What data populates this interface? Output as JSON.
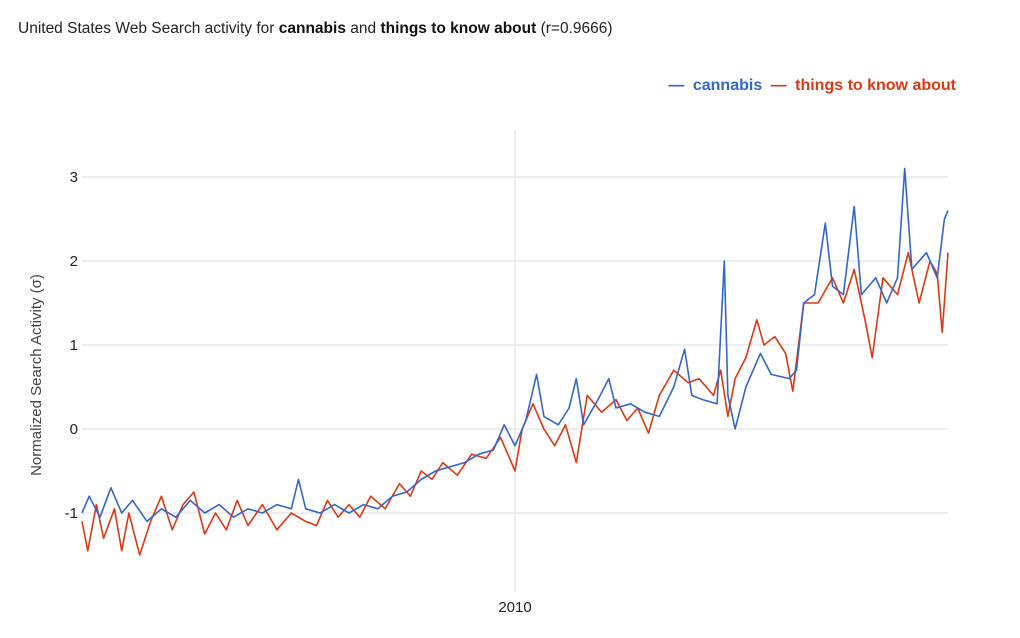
{
  "chart_data": {
    "type": "line",
    "title": {
      "prefix": "United States Web Search activity for ",
      "term1": "cannabis",
      "mid": " and ",
      "term2": "things to know about",
      "suffix": " (r=0.9666)"
    },
    "xlabel": "",
    "ylabel": "Normalized Search Activity (σ)",
    "xlim": [
      2004,
      2016
    ],
    "ylim": [
      -1.8,
      3.4
    ],
    "yticks": [
      -1,
      0,
      1,
      2,
      3
    ],
    "xticks": [
      2010
    ],
    "xtick_labels": [
      "2010"
    ],
    "grid": true,
    "legend_position": "top-right",
    "series": [
      {
        "name": "cannabis",
        "color": "#3366cc",
        "points": [
          [
            2004.0,
            -1.0
          ],
          [
            2004.1,
            -0.8
          ],
          [
            2004.25,
            -1.05
          ],
          [
            2004.4,
            -0.7
          ],
          [
            2004.55,
            -1.0
          ],
          [
            2004.7,
            -0.85
          ],
          [
            2004.9,
            -1.1
          ],
          [
            2005.1,
            -0.95
          ],
          [
            2005.3,
            -1.05
          ],
          [
            2005.5,
            -0.85
          ],
          [
            2005.7,
            -1.0
          ],
          [
            2005.9,
            -0.9
          ],
          [
            2006.1,
            -1.05
          ],
          [
            2006.3,
            -0.95
          ],
          [
            2006.5,
            -1.0
          ],
          [
            2006.7,
            -0.9
          ],
          [
            2006.9,
            -0.95
          ],
          [
            2007.0,
            -0.6
          ],
          [
            2007.1,
            -0.95
          ],
          [
            2007.3,
            -1.0
          ],
          [
            2007.5,
            -0.9
          ],
          [
            2007.7,
            -1.0
          ],
          [
            2007.9,
            -0.9
          ],
          [
            2008.1,
            -0.95
          ],
          [
            2008.3,
            -0.8
          ],
          [
            2008.5,
            -0.75
          ],
          [
            2008.7,
            -0.6
          ],
          [
            2008.9,
            -0.5
          ],
          [
            2009.1,
            -0.45
          ],
          [
            2009.3,
            -0.4
          ],
          [
            2009.5,
            -0.3
          ],
          [
            2009.7,
            -0.25
          ],
          [
            2009.85,
            0.05
          ],
          [
            2010.0,
            -0.2
          ],
          [
            2010.15,
            0.1
          ],
          [
            2010.3,
            0.65
          ],
          [
            2010.4,
            0.15
          ],
          [
            2010.6,
            0.05
          ],
          [
            2010.75,
            0.25
          ],
          [
            2010.85,
            0.6
          ],
          [
            2010.95,
            0.05
          ],
          [
            2011.15,
            0.35
          ],
          [
            2011.3,
            0.6
          ],
          [
            2011.4,
            0.25
          ],
          [
            2011.6,
            0.3
          ],
          [
            2011.8,
            0.2
          ],
          [
            2012.0,
            0.15
          ],
          [
            2012.2,
            0.5
          ],
          [
            2012.35,
            0.95
          ],
          [
            2012.45,
            0.4
          ],
          [
            2012.6,
            0.35
          ],
          [
            2012.8,
            0.3
          ],
          [
            2012.9,
            2.0
          ],
          [
            2012.95,
            0.4
          ],
          [
            2013.05,
            0.0
          ],
          [
            2013.2,
            0.5
          ],
          [
            2013.4,
            0.9
          ],
          [
            2013.55,
            0.65
          ],
          [
            2013.8,
            0.6
          ],
          [
            2013.9,
            0.7
          ],
          [
            2014.0,
            1.5
          ],
          [
            2014.15,
            1.6
          ],
          [
            2014.3,
            2.45
          ],
          [
            2014.4,
            1.7
          ],
          [
            2014.55,
            1.6
          ],
          [
            2014.7,
            2.65
          ],
          [
            2014.8,
            1.6
          ],
          [
            2015.0,
            1.8
          ],
          [
            2015.15,
            1.5
          ],
          [
            2015.3,
            1.8
          ],
          [
            2015.4,
            3.1
          ],
          [
            2015.5,
            1.9
          ],
          [
            2015.7,
            2.1
          ],
          [
            2015.85,
            1.8
          ],
          [
            2015.95,
            2.5
          ],
          [
            2016.0,
            2.6
          ]
        ]
      },
      {
        "name": "things to know about",
        "color": "#dc3912",
        "points": [
          [
            2004.0,
            -1.1
          ],
          [
            2004.08,
            -1.45
          ],
          [
            2004.2,
            -0.9
          ],
          [
            2004.3,
            -1.3
          ],
          [
            2004.45,
            -0.95
          ],
          [
            2004.55,
            -1.45
          ],
          [
            2004.65,
            -1.0
          ],
          [
            2004.8,
            -1.5
          ],
          [
            2004.95,
            -1.1
          ],
          [
            2005.1,
            -0.8
          ],
          [
            2005.25,
            -1.2
          ],
          [
            2005.4,
            -0.9
          ],
          [
            2005.55,
            -0.75
          ],
          [
            2005.7,
            -1.25
          ],
          [
            2005.85,
            -1.0
          ],
          [
            2006.0,
            -1.2
          ],
          [
            2006.15,
            -0.85
          ],
          [
            2006.3,
            -1.15
          ],
          [
            2006.5,
            -0.9
          ],
          [
            2006.7,
            -1.2
          ],
          [
            2006.9,
            -1.0
          ],
          [
            2007.1,
            -1.1
          ],
          [
            2007.25,
            -1.15
          ],
          [
            2007.4,
            -0.85
          ],
          [
            2007.55,
            -1.05
          ],
          [
            2007.7,
            -0.9
          ],
          [
            2007.85,
            -1.05
          ],
          [
            2008.0,
            -0.8
          ],
          [
            2008.2,
            -0.95
          ],
          [
            2008.4,
            -0.65
          ],
          [
            2008.55,
            -0.8
          ],
          [
            2008.7,
            -0.5
          ],
          [
            2008.85,
            -0.6
          ],
          [
            2009.0,
            -0.4
          ],
          [
            2009.2,
            -0.55
          ],
          [
            2009.4,
            -0.3
          ],
          [
            2009.6,
            -0.35
          ],
          [
            2009.8,
            -0.1
          ],
          [
            2010.0,
            -0.5
          ],
          [
            2010.1,
            0.0
          ],
          [
            2010.25,
            0.3
          ],
          [
            2010.4,
            0.0
          ],
          [
            2010.55,
            -0.2
          ],
          [
            2010.7,
            0.05
          ],
          [
            2010.85,
            -0.4
          ],
          [
            2011.0,
            0.4
          ],
          [
            2011.2,
            0.2
          ],
          [
            2011.4,
            0.35
          ],
          [
            2011.55,
            0.1
          ],
          [
            2011.7,
            0.25
          ],
          [
            2011.85,
            -0.05
          ],
          [
            2012.0,
            0.4
          ],
          [
            2012.2,
            0.7
          ],
          [
            2012.4,
            0.55
          ],
          [
            2012.55,
            0.6
          ],
          [
            2012.75,
            0.4
          ],
          [
            2012.85,
            0.7
          ],
          [
            2012.95,
            0.15
          ],
          [
            2013.05,
            0.6
          ],
          [
            2013.2,
            0.85
          ],
          [
            2013.35,
            1.3
          ],
          [
            2013.45,
            1.0
          ],
          [
            2013.6,
            1.1
          ],
          [
            2013.75,
            0.9
          ],
          [
            2013.85,
            0.45
          ],
          [
            2014.0,
            1.5
          ],
          [
            2014.2,
            1.5
          ],
          [
            2014.4,
            1.8
          ],
          [
            2014.55,
            1.5
          ],
          [
            2014.7,
            1.9
          ],
          [
            2014.85,
            1.3
          ],
          [
            2014.95,
            0.85
          ],
          [
            2015.1,
            1.8
          ],
          [
            2015.3,
            1.6
          ],
          [
            2015.45,
            2.1
          ],
          [
            2015.6,
            1.5
          ],
          [
            2015.75,
            2.0
          ],
          [
            2015.85,
            1.85
          ],
          [
            2015.92,
            1.15
          ],
          [
            2016.0,
            2.1
          ]
        ]
      }
    ]
  }
}
